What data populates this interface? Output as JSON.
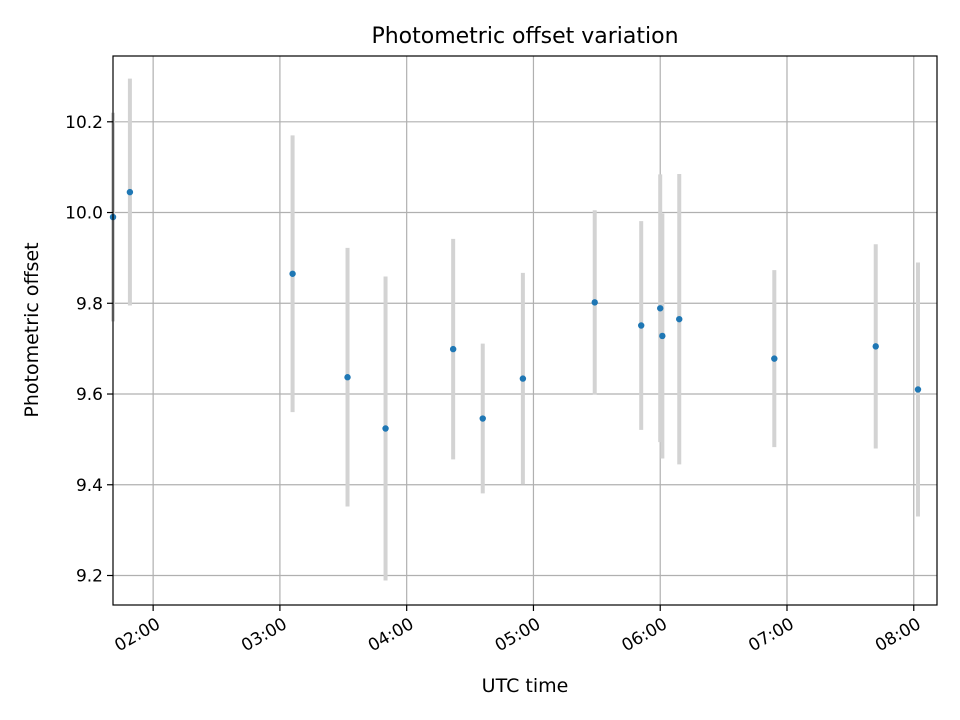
{
  "chart_data": {
    "type": "scatter",
    "title": "Photometric offset variation",
    "xlabel": "UTC time",
    "ylabel": "Photometric offset",
    "xlim": [
      "01:41",
      "08:11"
    ],
    "ylim": [
      9.135,
      10.345
    ],
    "grid": true,
    "x_ticks": [
      "02:00",
      "03:00",
      "04:00",
      "05:00",
      "06:00",
      "07:00",
      "08:00"
    ],
    "y_ticks": [
      9.2,
      9.4,
      9.6,
      9.8,
      10.0,
      10.2
    ],
    "y_tick_labels": [
      "9.2",
      "9.4",
      "9.6",
      "9.8",
      "10.0",
      "10.2"
    ],
    "marker_color": "#1f77b4",
    "errorbar_color": "#d3d3d3",
    "points": [
      {
        "t": "01:41",
        "y": 9.99,
        "err": 0.23
      },
      {
        "t": "01:49",
        "y": 10.045,
        "err": 0.25
      },
      {
        "t": "03:06",
        "y": 9.865,
        "err": 0.305
      },
      {
        "t": "03:32",
        "y": 9.637,
        "err": 0.285
      },
      {
        "t": "03:50",
        "y": 9.524,
        "err": 0.335
      },
      {
        "t": "04:22",
        "y": 9.699,
        "err": 0.243
      },
      {
        "t": "04:36",
        "y": 9.546,
        "err": 0.165
      },
      {
        "t": "04:55",
        "y": 9.634,
        "err": 0.233
      },
      {
        "t": "05:29",
        "y": 9.802,
        "err": 0.203
      },
      {
        "t": "05:51",
        "y": 9.751,
        "err": 0.23
      },
      {
        "t": "06:00",
        "y": 9.789,
        "err": 0.295
      },
      {
        "t": "06:01",
        "y": 9.728,
        "err": 0.27
      },
      {
        "t": "06:09",
        "y": 9.765,
        "err": 0.32
      },
      {
        "t": "06:54",
        "y": 9.678,
        "err": 0.195
      },
      {
        "t": "07:42",
        "y": 9.705,
        "err": 0.225
      },
      {
        "t": "08:02",
        "y": 9.61,
        "err": 0.28
      }
    ]
  }
}
